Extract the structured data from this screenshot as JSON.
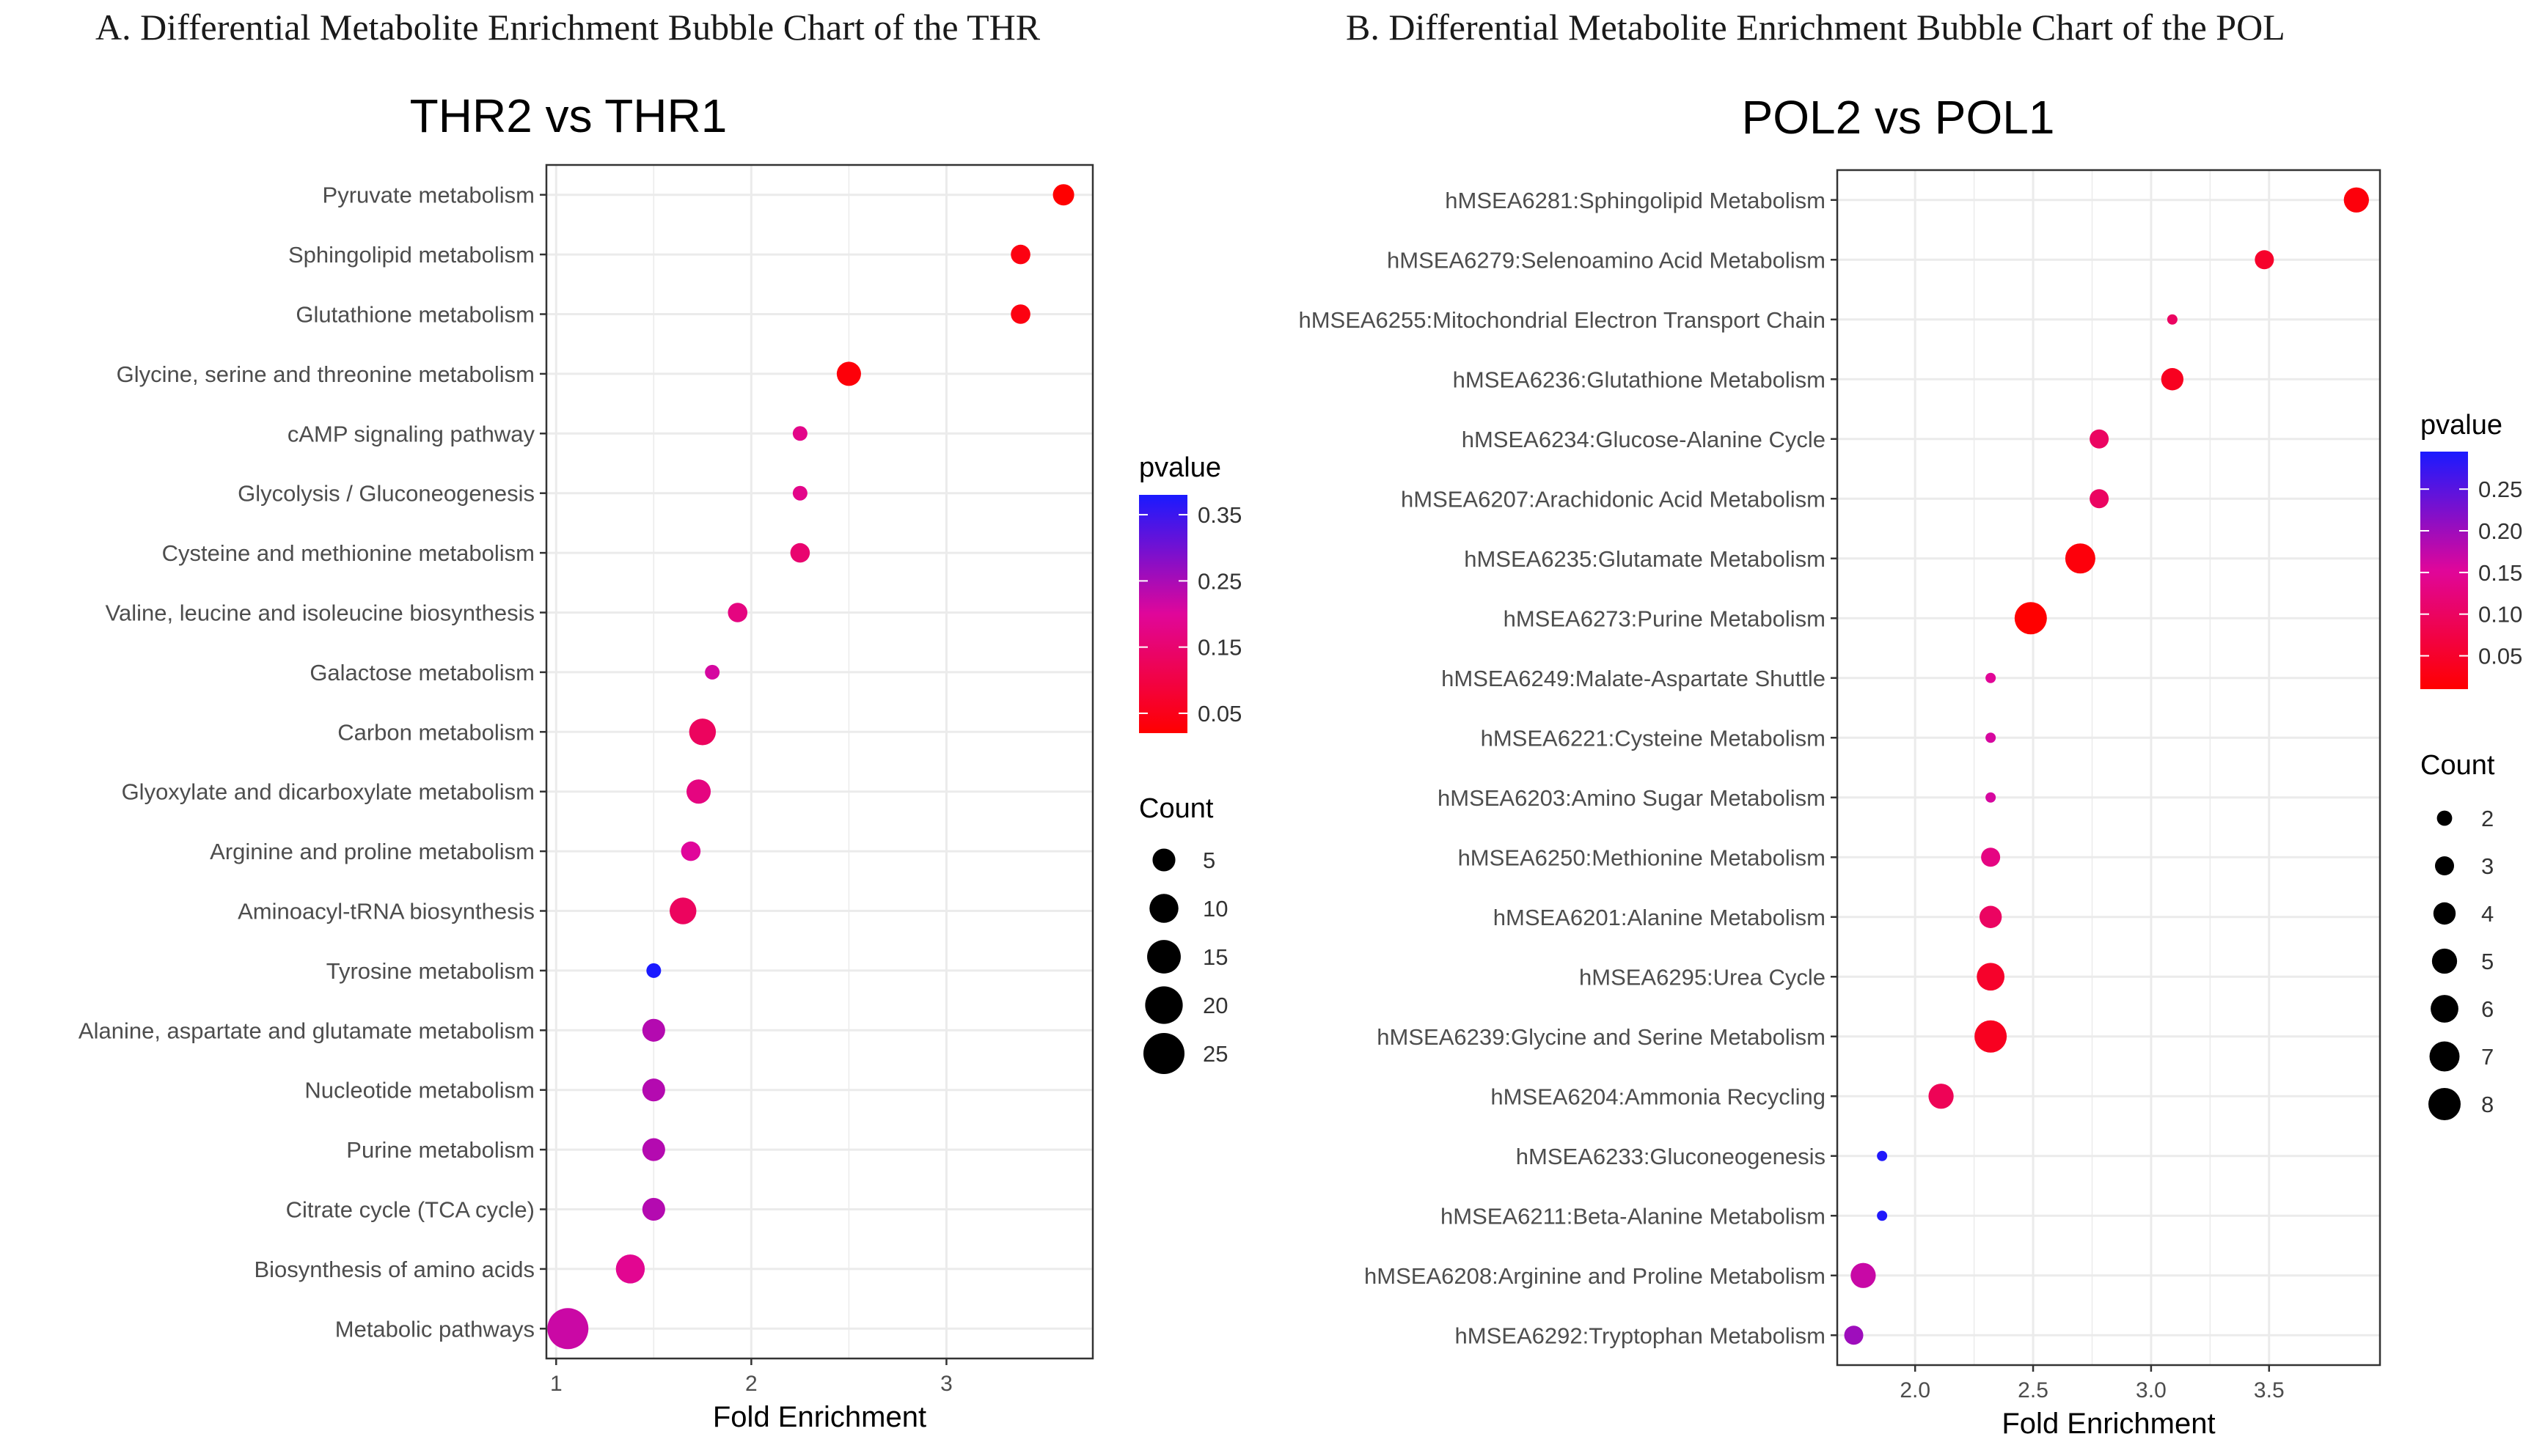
{
  "panels": {
    "A": {
      "caption": "A. Differential Metabolite Enrichment Bubble Chart of the THR"
    },
    "B": {
      "caption": "B. Differential Metabolite Enrichment Bubble Chart of the POL"
    }
  },
  "colors": {
    "low_pvalue": "#ff0000",
    "mid_pvalue": "#e0069a",
    "high_pvalue": "#1a1aff",
    "grid": "#ebebeb",
    "border": "#333333",
    "point_outline": "none"
  },
  "chart_data": [
    {
      "type": "scatter",
      "title": "THR2 vs THR1",
      "xlabel": "Fold Enrichment",
      "ylabel": "",
      "xlim": [
        0.95,
        3.75
      ],
      "xticks": [
        1,
        2,
        3
      ],
      "xtick_labels": [
        "1",
        "2",
        "3"
      ],
      "grid": true,
      "legend_position": "right",
      "categories": [
        "Pyruvate metabolism",
        "Sphingolipid metabolism",
        "Glutathione metabolism",
        "Glycine, serine and threonine metabolism",
        "cAMP signaling pathway",
        "Glycolysis / Gluconeogenesis",
        "Cysteine and methionine metabolism",
        "Valine, leucine and isoleucine biosynthesis",
        "Galactose metabolism",
        "Carbon metabolism",
        "Glyoxylate and dicarboxylate metabolism",
        "Arginine and proline metabolism",
        "Aminoacyl-tRNA biosynthesis",
        "Tyrosine metabolism",
        "Alanine, aspartate and glutamate metabolism",
        "Nucleotide metabolism",
        "Purine metabolism",
        "Citrate cycle (TCA cycle)",
        "Biosynthesis of amino acids",
        "Metabolic pathways"
      ],
      "fold_enrichment": [
        3.6,
        3.38,
        3.38,
        2.5,
        2.25,
        2.25,
        2.25,
        1.93,
        1.8,
        1.75,
        1.73,
        1.69,
        1.65,
        1.5,
        1.5,
        1.5,
        1.5,
        1.5,
        1.38,
        1.06
      ],
      "count": [
        4,
        3,
        3,
        6,
        1,
        1,
        3,
        3,
        1,
        8,
        6,
        3,
        8,
        1,
        5,
        5,
        5,
        5,
        10,
        25
      ],
      "pvalue": [
        0.01,
        0.04,
        0.04,
        0.03,
        0.18,
        0.18,
        0.15,
        0.17,
        0.21,
        0.13,
        0.17,
        0.2,
        0.13,
        0.38,
        0.24,
        0.24,
        0.24,
        0.24,
        0.19,
        0.22
      ],
      "pvalue_legend": {
        "title": "pvalue",
        "range": [
          0.02,
          0.38
        ],
        "ticks": [
          0.05,
          0.15,
          0.25,
          0.35
        ],
        "tick_labels": [
          "0.05",
          "0.15",
          "0.25",
          "0.35"
        ]
      },
      "count_legend": {
        "title": "Count",
        "values": [
          5,
          10,
          15,
          20,
          25
        ],
        "labels": [
          "5",
          "10",
          "15",
          "20",
          "25"
        ]
      }
    },
    {
      "type": "scatter",
      "title": "POL2 vs POL1",
      "xlabel": "Fold Enrichment",
      "ylabel": "",
      "xlim": [
        1.67,
        3.97
      ],
      "xticks": [
        2.0,
        2.5,
        3.0,
        3.5
      ],
      "xtick_labels": [
        "2.0",
        "2.5",
        "3.0",
        "3.5"
      ],
      "grid": true,
      "legend_position": "right",
      "categories": [
        "hMSEA6281:Sphingolipid Metabolism",
        "hMSEA6279:Selenoamino Acid Metabolism",
        "hMSEA6255:Mitochondrial Electron Transport Chain",
        "hMSEA6236:Glutathione Metabolism",
        "hMSEA6234:Glucose-Alanine Cycle",
        "hMSEA6207:Arachidonic Acid Metabolism",
        "hMSEA6235:Glutamate Metabolism",
        "hMSEA6273:Purine Metabolism",
        "hMSEA6249:Malate-Aspartate Shuttle",
        "hMSEA6221:Cysteine Metabolism",
        "hMSEA6203:Amino Sugar Metabolism",
        "hMSEA6250:Methionine Metabolism",
        "hMSEA6201:Alanine Metabolism",
        "hMSEA6295:Urea Cycle",
        "hMSEA6239:Glycine and Serine Metabolism",
        "hMSEA6204:Ammonia Recycling",
        "hMSEA6233:Gluconeogenesis",
        "hMSEA6211:Beta-Alanine Metabolism",
        "hMSEA6208:Arginine and Proline Metabolism",
        "hMSEA6292:Tryptophan Metabolism"
      ],
      "fold_enrichment": [
        3.87,
        3.48,
        3.09,
        3.09,
        2.78,
        2.78,
        2.7,
        2.49,
        2.32,
        2.32,
        2.32,
        2.32,
        2.32,
        2.32,
        2.32,
        2.11,
        1.86,
        1.86,
        1.78,
        1.74
      ],
      "count": [
        5,
        3,
        1,
        4,
        3,
        3,
        7,
        8,
        1,
        1,
        1,
        3,
        4,
        6,
        8,
        5,
        1,
        1,
        5,
        3
      ],
      "pvalue": [
        0.02,
        0.05,
        0.1,
        0.04,
        0.1,
        0.1,
        0.02,
        0.01,
        0.15,
        0.16,
        0.16,
        0.13,
        0.1,
        0.05,
        0.04,
        0.09,
        0.29,
        0.29,
        0.17,
        0.2
      ],
      "pvalue_legend": {
        "title": "pvalue",
        "range": [
          0.01,
          0.295
        ],
        "ticks": [
          0.05,
          0.1,
          0.15,
          0.2,
          0.25
        ],
        "tick_labels": [
          "0.05",
          "0.10",
          "0.15",
          "0.20",
          "0.25"
        ]
      },
      "count_legend": {
        "title": "Count",
        "values": [
          2,
          3,
          4,
          5,
          6,
          7,
          8
        ],
        "labels": [
          "2",
          "3",
          "4",
          "5",
          "6",
          "7",
          "8"
        ]
      }
    }
  ]
}
